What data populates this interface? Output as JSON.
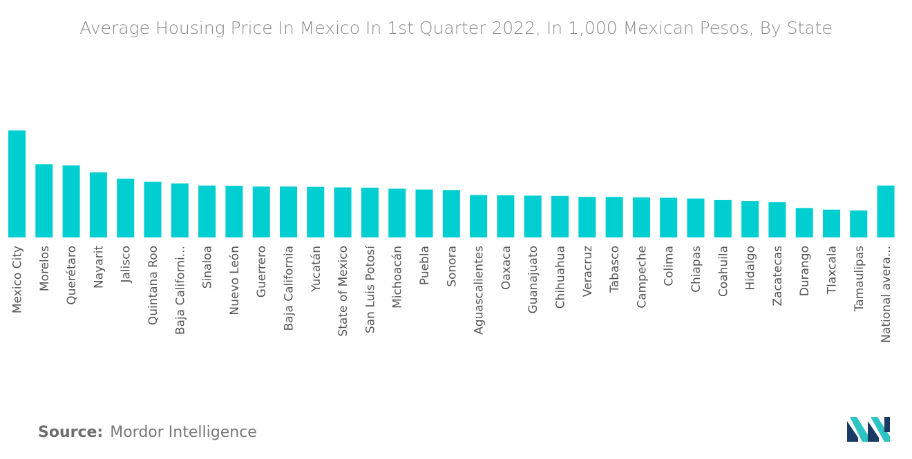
{
  "chart_data": {
    "type": "bar",
    "title": "Average Housing Price In Mexico In 1st Quarter 2022, In 1,000 Mexican Pesos, By State",
    "xlabel": "",
    "ylabel": "",
    "color": "#00ced1",
    "grid": false,
    "legend": "none",
    "categories": [
      "Mexico City",
      "Morelos",
      "Querétaro",
      "Nayarit",
      "Jalisco",
      "Quintana Roo",
      "Baja Californi...",
      "Sinaloa",
      "Nuevo León",
      "Guerrero",
      "Baja California",
      "Yucatán",
      "State of Mexico",
      "San Luis Potosí",
      "Michoacán",
      "Puebla",
      "Sonora",
      "Aguascalientes",
      "Oaxaca",
      "Guanajuato",
      "Chihuahua",
      "Veracruz",
      "Tabasco",
      "Campeche",
      "Colima",
      "Chiapas",
      "Coahuila",
      "Hidalgo",
      "Zacatecas",
      "Durango",
      "Tlaxcala",
      "Tamaulipas",
      "National avera..."
    ],
    "values": [
      2020,
      1380,
      1360,
      1230,
      1110,
      1050,
      1020,
      980,
      975,
      960,
      960,
      955,
      945,
      940,
      920,
      905,
      895,
      800,
      795,
      790,
      785,
      765,
      765,
      755,
      750,
      735,
      705,
      690,
      665,
      555,
      525,
      510,
      980
    ],
    "ylim": [
      0,
      2020
    ]
  },
  "source": {
    "label": "Source:",
    "text": "Mordor Intelligence"
  },
  "logo": {
    "icon": "mordor-intelligence-logo",
    "colors": [
      "#1a3a66",
      "#2ec4c4"
    ]
  }
}
